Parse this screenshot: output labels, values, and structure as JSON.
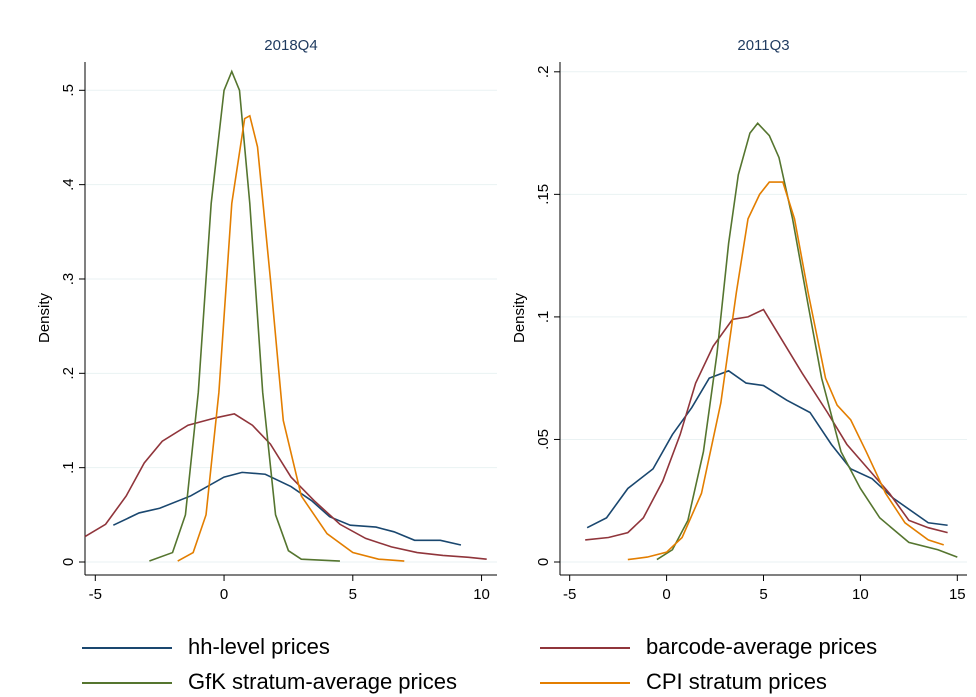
{
  "chart_data": [
    {
      "type": "line",
      "title": "2018Q4",
      "y_label": "Density",
      "xlim": [
        -5.4,
        10.6
      ],
      "xticks": [
        -5,
        0,
        5,
        10
      ],
      "ylim": [
        0,
        0.53
      ],
      "yticks": [
        0,
        {
          "value": 0.1,
          "label": ".1"
        },
        {
          "value": 0.2,
          "label": ".2"
        },
        {
          "value": 0.3,
          "label": ".3"
        },
        {
          "value": 0.4,
          "label": ".4"
        },
        {
          "value": 0.5,
          "label": ".5"
        }
      ],
      "grid": true,
      "series": [
        {
          "name": "hh-level prices",
          "color": "#1a476f",
          "x": [
            -4.3,
            -3.3,
            -2.5,
            -1.3,
            0,
            0.7,
            1.6,
            2.6,
            3.4,
            4.1,
            4.9,
            5.9,
            6.6,
            7.4,
            8.4,
            9.2
          ],
          "values": [
            0.039,
            0.052,
            0.057,
            0.07,
            0.09,
            0.095,
            0.093,
            0.08,
            0.065,
            0.048,
            0.039,
            0.037,
            0.032,
            0.023,
            0.023,
            0.018
          ]
        },
        {
          "name": "barcode-average prices",
          "color": "#90353b",
          "x": [
            -5.4,
            -4.6,
            -3.8,
            -3.1,
            -2.4,
            -1.4,
            -0.3,
            0.4,
            1.1,
            1.8,
            2.6,
            3.5,
            4.5,
            5.5,
            6.5,
            7.5,
            8.5,
            9.5,
            10.2
          ],
          "values": [
            0.027,
            0.04,
            0.07,
            0.105,
            0.128,
            0.145,
            0.153,
            0.157,
            0.145,
            0.125,
            0.09,
            0.065,
            0.04,
            0.025,
            0.016,
            0.01,
            0.007,
            0.005,
            0.003
          ]
        },
        {
          "name": "GfK stratum-average prices",
          "color": "#55752f",
          "x": [
            -2.9,
            -2,
            -1.5,
            -1,
            -0.5,
            0,
            0.3,
            0.6,
            1,
            1.5,
            2,
            2.5,
            3,
            4.5
          ],
          "values": [
            0.001,
            0.01,
            0.05,
            0.18,
            0.38,
            0.5,
            0.52,
            0.5,
            0.38,
            0.18,
            0.05,
            0.012,
            0.003,
            0.001
          ]
        },
        {
          "name": "CPI stratum prices",
          "color": "#e37e00",
          "x": [
            -1.8,
            -1.2,
            -0.7,
            -0.2,
            0.3,
            0.8,
            1,
            1.3,
            1.8,
            2.3,
            3,
            4,
            5,
            6,
            7
          ],
          "values": [
            0.001,
            0.01,
            0.05,
            0.18,
            0.38,
            0.47,
            0.473,
            0.44,
            0.3,
            0.15,
            0.07,
            0.03,
            0.01,
            0.003,
            0.001
          ]
        }
      ]
    },
    {
      "type": "line",
      "title": "2011Q3",
      "y_label": "Density",
      "xlim": [
        -5.5,
        15.5
      ],
      "xticks": [
        -5,
        0,
        5,
        10,
        15
      ],
      "ylim": [
        0,
        0.204
      ],
      "yticks": [
        0,
        {
          "value": 0.05,
          "label": ".05"
        },
        {
          "value": 0.1,
          "label": ".1"
        },
        {
          "value": 0.15,
          "label": ".15"
        },
        {
          "value": 0.2,
          "label": ".2"
        }
      ],
      "grid": true,
      "series": [
        {
          "color": "#1a476f",
          "x": [
            -4.1,
            -3.1,
            -2,
            -0.7,
            0.3,
            1.3,
            2.2,
            3.2,
            4.1,
            5,
            6.2,
            7.4,
            8.5,
            9.5,
            10.6,
            11.7,
            13.5,
            14.5
          ],
          "values": [
            0.014,
            0.018,
            0.03,
            0.038,
            0.052,
            0.063,
            0.075,
            0.078,
            0.073,
            0.072,
            0.066,
            0.061,
            0.048,
            0.038,
            0.034,
            0.026,
            0.016,
            0.015
          ]
        },
        {
          "color": "#90353b",
          "x": [
            -4.2,
            -3,
            -2,
            -1.2,
            -0.2,
            0.7,
            1.5,
            2.4,
            3.4,
            4.2,
            5,
            6,
            7,
            8.3,
            9.3,
            10.4,
            11.5,
            12.5,
            13.5,
            14.5
          ],
          "values": [
            0.009,
            0.01,
            0.012,
            0.018,
            0.033,
            0.052,
            0.073,
            0.088,
            0.099,
            0.1,
            0.103,
            0.09,
            0.077,
            0.061,
            0.048,
            0.038,
            0.028,
            0.017,
            0.014,
            0.012
          ]
        },
        {
          "color": "#55752f",
          "x": [
            -0.5,
            0.3,
            1.1,
            1.9,
            2.6,
            3.2,
            3.7,
            4.3,
            4.7,
            5.3,
            5.8,
            6.5,
            7.3,
            8,
            9,
            10,
            11,
            12.5,
            14,
            15
          ],
          "values": [
            0.001,
            0.005,
            0.017,
            0.045,
            0.085,
            0.13,
            0.158,
            0.175,
            0.179,
            0.174,
            0.165,
            0.14,
            0.105,
            0.075,
            0.045,
            0.03,
            0.018,
            0.008,
            0.005,
            0.002
          ]
        },
        {
          "color": "#e37e00",
          "x": [
            -2,
            -1,
            0,
            0.8,
            1.8,
            2.8,
            3.6,
            4.2,
            4.8,
            5.3,
            6,
            6.6,
            7.3,
            8.2,
            8.8,
            9.5,
            10.3,
            11.3,
            12.3,
            13.5,
            14.3
          ],
          "values": [
            0.001,
            0.002,
            0.004,
            0.01,
            0.028,
            0.065,
            0.11,
            0.14,
            0.15,
            0.155,
            0.155,
            0.14,
            0.11,
            0.075,
            0.064,
            0.058,
            0.045,
            0.028,
            0.016,
            0.009,
            0.007
          ]
        }
      ]
    }
  ]
}
